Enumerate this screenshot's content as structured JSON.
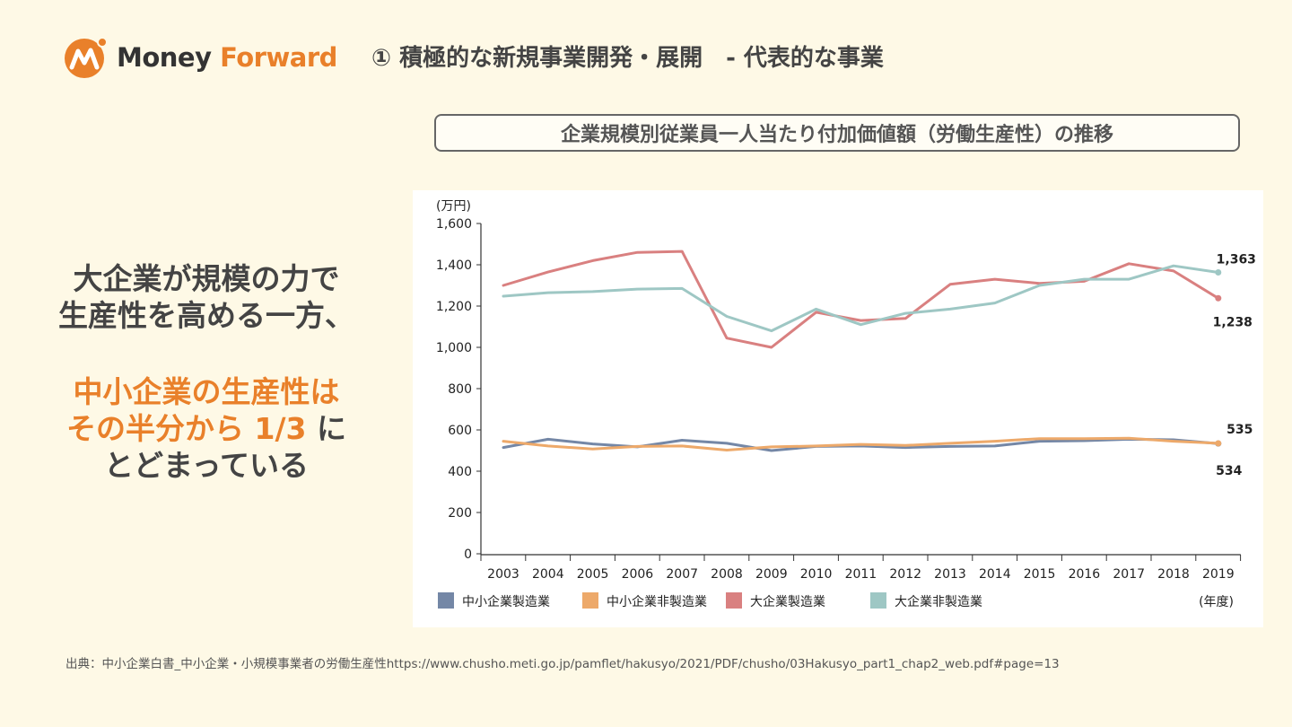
{
  "logo": {
    "money": "Money",
    "forward": "Forward"
  },
  "page_title": "① 積極的な新規事業開発・展開　- 代表的な事業",
  "chart_heading": "企業規模別従業員一人当たり付加価値額（労働生産性）の推移",
  "message": {
    "line1": "大企業が規模の力で",
    "line2": "生産性を高める一方、",
    "line3": "中小企業の生産性は",
    "line4_orange": "その半分から 1/3",
    "line4_dark": " に",
    "line5": "とどまっている"
  },
  "source": "出典：中小企業白書_中小企業・小規模事業者の労働生産性https://www.chusho.meti.go.jp/pamflet/hakusyo/2021/PDF/chusho/03Hakusyo_part1_chap2_web.pdf#page=13",
  "chart_data": {
    "type": "line",
    "title": "企業規模別従業員一人当たり付加価値額（労働生産性）の推移",
    "ylabel": "(万円)",
    "xlabel": "(年度)",
    "ylim": [
      0,
      1600
    ],
    "yticks": [
      0,
      200,
      400,
      600,
      800,
      1000,
      1200,
      1400,
      1600
    ],
    "ytick_labels": [
      "0",
      "200",
      "400",
      "600",
      "800",
      "1,000",
      "1,200",
      "1,400",
      "1,600"
    ],
    "grid": false,
    "categories": [
      "2003",
      "2004",
      "2005",
      "2006",
      "2007",
      "2008",
      "2009",
      "2010",
      "2011",
      "2012",
      "2013",
      "2014",
      "2015",
      "2016",
      "2017",
      "2018",
      "2019"
    ],
    "series": [
      {
        "name": "中小企業製造業",
        "color": "#7487a6",
        "values": [
          515,
          555,
          532,
          518,
          550,
          535,
          500,
          520,
          522,
          515,
          520,
          522,
          545,
          548,
          555,
          552,
          534
        ]
      },
      {
        "name": "中小企業非製造業",
        "color": "#eda96a",
        "values": [
          545,
          522,
          508,
          520,
          522,
          502,
          518,
          522,
          530,
          525,
          535,
          545,
          558,
          558,
          560,
          545,
          535
        ]
      },
      {
        "name": "大企業製造業",
        "color": "#d98080",
        "values": [
          1300,
          1365,
          1420,
          1460,
          1465,
          1045,
          1000,
          1170,
          1130,
          1140,
          1305,
          1330,
          1310,
          1320,
          1405,
          1370,
          1238
        ]
      },
      {
        "name": "大企業非製造業",
        "color": "#9ec7c4",
        "values": [
          1248,
          1265,
          1270,
          1282,
          1285,
          1150,
          1080,
          1185,
          1110,
          1165,
          1185,
          1215,
          1300,
          1330,
          1330,
          1395,
          1363
        ]
      }
    ],
    "annotations": [
      {
        "text": "1,363",
        "series": "大企業非製造業",
        "category": "2019"
      },
      {
        "text": "1,238",
        "series": "大企業製造業",
        "category": "2019"
      },
      {
        "text": "535",
        "series": "中小企業非製造業",
        "category": "2019"
      },
      {
        "text": "534",
        "series": "中小企業製造業",
        "category": "2019"
      }
    ]
  }
}
